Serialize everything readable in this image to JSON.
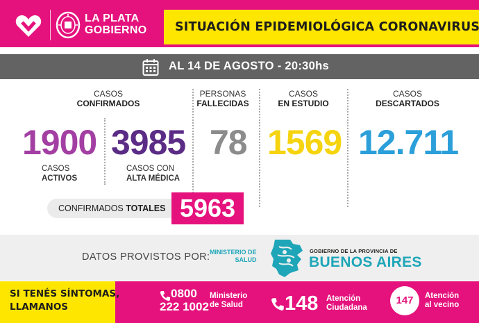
{
  "header": {
    "brand_line1": "LA PLATA",
    "brand_line2": "GOBIERNO",
    "title": "SITUACIÓN EPIDEMIOLÓGICA CORONAVIRUS"
  },
  "date_bar": {
    "text": "AL 14 DE AGOSTO - 20:30hs"
  },
  "stats": {
    "confirmados": {
      "label_line1": "CASOS",
      "label_line2": "CONFIRMADOS"
    },
    "activos": {
      "value": "1900",
      "label_line1": "CASOS",
      "label_line2": "ACTIVOS"
    },
    "alta": {
      "value": "3985",
      "label_line1": "CASOS CON",
      "label_line2": "ALTA MÉDICA"
    },
    "fallecidas": {
      "value": "78",
      "label_line1": "PERSONAS",
      "label_line2": "FALLECIDAS"
    },
    "estudio": {
      "value": "1569",
      "label_line1": "CASOS",
      "label_line2": "EN ESTUDIO"
    },
    "descartados": {
      "value": "12.711",
      "label_line1": "CASOS",
      "label_line2": "DESCARTADOS"
    },
    "totales": {
      "label_prefix": "CONFIRMADOS ",
      "label_bold": "TOTALES",
      "value": "5963"
    }
  },
  "provider": {
    "label": "DATOS PROVISTOS POR:",
    "ministerio_line1": "MINISTERIO DE",
    "ministerio_line2": "SALUD",
    "gobierno_line": "GOBIERNO DE LA PROVINCIA DE",
    "provincia": "BUENOS AIRES"
  },
  "footer": {
    "cta_line1": "SI TENÉS SÍNTOMAS,",
    "cta_line2": "LLAMANOS",
    "contacts": [
      {
        "number_line1": "0800",
        "number_line2": "222 1002",
        "label_line1": "Ministerio",
        "label_line2": "de Salud"
      },
      {
        "number": "148",
        "label_line1": "Atención",
        "label_line2": "Ciudadana"
      },
      {
        "number": "147",
        "label_line1": "Atención",
        "label_line2": "al vecino"
      }
    ]
  },
  "colors": {
    "magenta": "#e5127d",
    "yellow": "#ffe600",
    "purple_activos": "#a33fa3",
    "purple_alta": "#5b2c86",
    "gray_fallecidas": "#8c8c8c",
    "yellow_estudio": "#f5d40f",
    "blue_descartados": "#2b9fd9",
    "teal_provincia": "#1ea6b8"
  },
  "icons": [
    "heart-logo-icon",
    "city-seal-icon",
    "calendar-icon",
    "phone-icon",
    "province-map-icon"
  ]
}
